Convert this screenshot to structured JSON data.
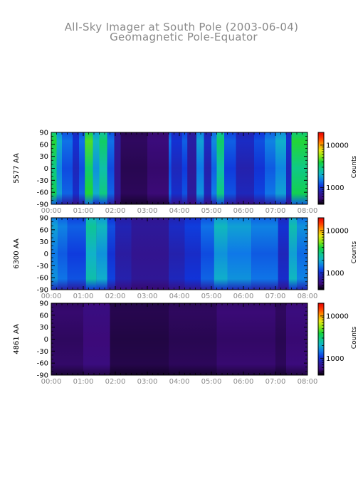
{
  "chart_data": {
    "type": "heatmap",
    "title": "All-Sky Imager at South Pole (2003-06-04)",
    "subtitle": "Geomagnetic Pole-Equator",
    "x_ticks": [
      "00:00",
      "01:00",
      "02:00",
      "03:00",
      "04:00",
      "05:00",
      "06:00",
      "07:00",
      "08:00"
    ],
    "x_range": [
      "00:00",
      "08:00"
    ],
    "y_ticks": [
      90,
      60,
      30,
      0,
      -30,
      -60,
      -90
    ],
    "y_range": [
      -90,
      90
    ],
    "colorbar": {
      "label": "Counts",
      "ticks": [
        "10000",
        "1000"
      ],
      "scale": "log",
      "range": [
        400,
        20000
      ],
      "colormap": [
        "#000000",
        "#3c0a7a",
        "#2a1ca0",
        "#0f35dc",
        "#0f7ae8",
        "#10b4c8",
        "#0fc88c",
        "#14d23c",
        "#8ce614",
        "#e6e614",
        "#ff9c00",
        "#ff3c00",
        "#e60000"
      ]
    },
    "panels": [
      {
        "ylabel": "5577 AA",
        "background": "#2626c4",
        "columns": [
          {
            "start": "00:00",
            "end": "00:10",
            "level": 0.55
          },
          {
            "start": "00:10",
            "end": "00:20",
            "level": 0.38
          },
          {
            "start": "00:20",
            "end": "00:40",
            "level": 0.3
          },
          {
            "start": "00:40",
            "end": "00:52",
            "level": 0.22
          },
          {
            "start": "00:52",
            "end": "01:03",
            "level": 0.3
          },
          {
            "start": "01:03",
            "end": "01:18",
            "level": 0.58
          },
          {
            "start": "01:18",
            "end": "01:30",
            "level": 0.4
          },
          {
            "start": "01:30",
            "end": "01:45",
            "level": 0.5
          },
          {
            "start": "01:45",
            "end": "01:58",
            "level": 0.3
          },
          {
            "start": "01:58",
            "end": "02:10",
            "level": 0.14
          },
          {
            "start": "02:10",
            "end": "03:00",
            "level": 0.06
          },
          {
            "start": "03:00",
            "end": "03:40",
            "level": 0.08
          },
          {
            "start": "03:40",
            "end": "03:45",
            "level": 0.3
          },
          {
            "start": "03:45",
            "end": "04:05",
            "level": 0.22
          },
          {
            "start": "04:05",
            "end": "04:15",
            "level": 0.28
          },
          {
            "start": "04:15",
            "end": "04:32",
            "level": 0.16
          },
          {
            "start": "04:32",
            "end": "04:46",
            "level": 0.36
          },
          {
            "start": "04:46",
            "end": "05:00",
            "level": 0.2
          },
          {
            "start": "05:00",
            "end": "05:10",
            "level": 0.33
          },
          {
            "start": "05:10",
            "end": "05:24",
            "level": 0.5
          },
          {
            "start": "05:24",
            "end": "05:46",
            "level": 0.28
          },
          {
            "start": "05:46",
            "end": "06:20",
            "level": 0.2
          },
          {
            "start": "06:20",
            "end": "06:40",
            "level": 0.26
          },
          {
            "start": "06:40",
            "end": "07:00",
            "level": 0.32
          },
          {
            "start": "07:00",
            "end": "07:20",
            "level": 0.38
          },
          {
            "start": "07:20",
            "end": "07:30",
            "level": 0.22
          },
          {
            "start": "07:30",
            "end": "08:00",
            "level": 0.55
          }
        ]
      },
      {
        "ylabel": "6300 AA",
        "background": "#2a2ad8",
        "columns": [
          {
            "start": "00:00",
            "end": "00:12",
            "level": 0.36
          },
          {
            "start": "00:12",
            "end": "00:30",
            "level": 0.32
          },
          {
            "start": "00:30",
            "end": "01:05",
            "level": 0.28
          },
          {
            "start": "01:05",
            "end": "01:25",
            "level": 0.45
          },
          {
            "start": "01:25",
            "end": "01:45",
            "level": 0.4
          },
          {
            "start": "01:45",
            "end": "02:00",
            "level": 0.26
          },
          {
            "start": "02:00",
            "end": "02:30",
            "level": 0.18
          },
          {
            "start": "02:30",
            "end": "03:40",
            "level": 0.14
          },
          {
            "start": "03:40",
            "end": "04:10",
            "level": 0.2
          },
          {
            "start": "04:10",
            "end": "04:40",
            "level": 0.24
          },
          {
            "start": "04:40",
            "end": "05:05",
            "level": 0.3
          },
          {
            "start": "05:05",
            "end": "05:30",
            "level": 0.4
          },
          {
            "start": "05:30",
            "end": "06:15",
            "level": 0.36
          },
          {
            "start": "06:15",
            "end": "07:05",
            "level": 0.32
          },
          {
            "start": "07:05",
            "end": "07:25",
            "level": 0.22
          },
          {
            "start": "07:25",
            "end": "07:40",
            "level": 0.42
          },
          {
            "start": "07:40",
            "end": "08:00",
            "level": 0.34
          }
        ]
      },
      {
        "ylabel": "4861 AA",
        "background": "#3c1090",
        "columns": [
          {
            "start": "00:00",
            "end": "01:00",
            "level": 0.07
          },
          {
            "start": "01:00",
            "end": "01:50",
            "level": 0.09
          },
          {
            "start": "01:50",
            "end": "03:40",
            "level": 0.05
          },
          {
            "start": "03:40",
            "end": "05:10",
            "level": 0.06
          },
          {
            "start": "05:10",
            "end": "07:00",
            "level": 0.075
          },
          {
            "start": "07:00",
            "end": "07:20",
            "level": 0.06
          },
          {
            "start": "07:20",
            "end": "08:00",
            "level": 0.085
          }
        ]
      }
    ]
  }
}
